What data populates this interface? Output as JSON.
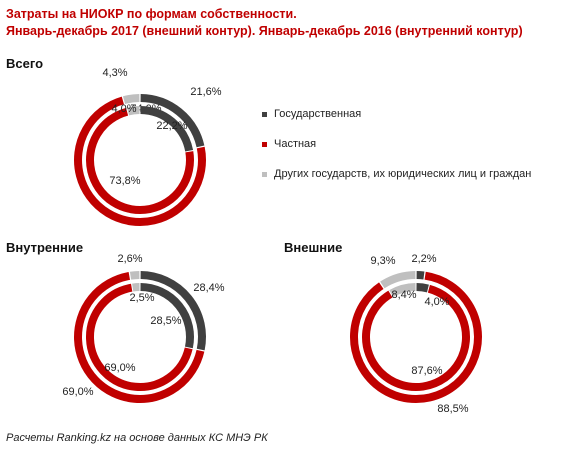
{
  "title_line1": "Затраты на НИОКР по формам собственности.",
  "title_line2": "Январь-декабрь 2017 (внешний контур). Январь-декабрь 2016 (внутренний контур)",
  "colors": {
    "gos": "#404040",
    "chast": "#c00000",
    "drugie": "#bfbfbf",
    "title": "#c00000"
  },
  "legend": [
    {
      "key": "gos",
      "label": "Государственная"
    },
    {
      "key": "chast",
      "label": "Частная"
    },
    {
      "key": "drugie",
      "label": "Других государств, их юридических лиц и граждан"
    }
  ],
  "source": "Расчеты Ranking.kz на основе данных КС МНЭ РК",
  "chart_data": [
    {
      "type": "pie",
      "title": "Всего",
      "categories": [
        "Государственная",
        "Частная",
        "Других государств, их юридических лиц и граждан"
      ],
      "series": [
        {
          "name": "Январь-декабрь 2017",
          "values": [
            21.6,
            74.0,
            4.3
          ],
          "labels": [
            "21,6%",
            "74,0%",
            "4,3%"
          ]
        },
        {
          "name": "Январь-декабрь 2016",
          "values": [
            22.2,
            73.8,
            4.0
          ],
          "labels": [
            "22,2%",
            "73,8%",
            "4,0%"
          ]
        }
      ]
    },
    {
      "type": "pie",
      "title": "Внутренние",
      "categories": [
        "Государственная",
        "Частная",
        "Других государств, их юридических лиц и граждан"
      ],
      "series": [
        {
          "name": "Январь-декабрь 2017",
          "values": [
            28.4,
            69.0,
            2.6
          ],
          "labels": [
            "28,4%",
            "69,0%",
            "2,6%"
          ]
        },
        {
          "name": "Январь-декабрь 2016",
          "values": [
            28.5,
            69.0,
            2.5
          ],
          "labels": [
            "28,5%",
            "69,0%",
            "2,5%"
          ]
        }
      ]
    },
    {
      "type": "pie",
      "title": "Внешние",
      "categories": [
        "Государственная",
        "Частная",
        "Других государств, их юридических лиц и граждан"
      ],
      "series": [
        {
          "name": "Январь-декабрь 2017",
          "values": [
            2.2,
            88.5,
            9.3
          ],
          "labels": [
            "2,2%",
            "88,5%",
            "9,3%"
          ]
        },
        {
          "name": "Январь-декабрь 2016",
          "values": [
            4.0,
            87.6,
            8.4
          ],
          "labels": [
            "4,0%",
            "87,6%",
            "8,4%"
          ]
        }
      ]
    }
  ]
}
